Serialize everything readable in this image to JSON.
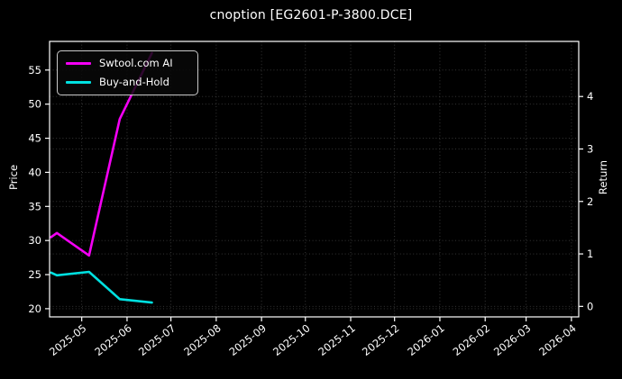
{
  "title": "cnoption [EG2601-P-3800.DCE]",
  "chart_data": {
    "type": "line",
    "title": "cnoption [EG2601-P-3800.DCE]",
    "xlabel": "",
    "ylabel_left": "Price",
    "ylabel_right": "Return",
    "background_color": "#000000",
    "text_color": "#ffffff",
    "grid": true,
    "legend_position": "upper-left",
    "x_tick_labels": [
      "2025-05",
      "2025-06",
      "2025-07",
      "2025-08",
      "2025-09",
      "2025-10",
      "2025-11",
      "2025-12",
      "2026-01",
      "2026-02",
      "2026-03",
      "2026-04"
    ],
    "left_axis_ticks": [
      20,
      25,
      30,
      35,
      40,
      45,
      50,
      55
    ],
    "right_axis_ticks": [
      0,
      1,
      2,
      3,
      4
    ],
    "ylim_left": [
      18.8,
      59.2
    ],
    "ylim_right": [
      -0.2,
      5.05
    ],
    "xlim": [
      "2025-04-09",
      "2026-04-06"
    ],
    "x": [
      "2025-04-10",
      "2025-04-14",
      "2025-05-06",
      "2025-05-27",
      "2025-06-18"
    ],
    "series": [
      {
        "name": "Swtool.com AI",
        "axis": "left",
        "color": "#f400f4",
        "values": [
          30.5,
          31.1,
          27.8,
          47.8,
          57.5
        ]
      },
      {
        "name": "Buy-and-Hold",
        "axis": "left",
        "color": "#00e0e0",
        "values": [
          25.3,
          24.9,
          25.4,
          21.4,
          20.9
        ]
      }
    ]
  }
}
